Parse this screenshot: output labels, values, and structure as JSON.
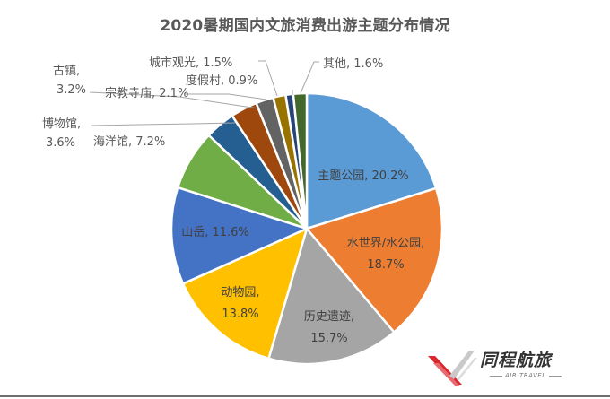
{
  "title": "2020暑期国内文旅消费出游主题分布情况",
  "chart_data": {
    "type": "pie",
    "title": "2020暑期国内文旅消费出游主题分布情况",
    "start_angle_deg": 0,
    "direction": "clockwise",
    "categories": [
      "主题公园",
      "水世界/水公园",
      "历史遗迹",
      "动物园",
      "山岳",
      "海洋馆",
      "博物馆",
      "古镇",
      "宗教寺庙",
      "城市观光",
      "度假村",
      "其他"
    ],
    "values": [
      20.2,
      18.7,
      15.7,
      13.8,
      11.6,
      7.2,
      3.6,
      3.2,
      2.1,
      1.5,
      0.9,
      1.6
    ],
    "unit": "%",
    "colors": [
      "#5B9BD5",
      "#ED7D31",
      "#A5A5A5",
      "#FFC000",
      "#4472C4",
      "#70AD47",
      "#255E91",
      "#9E480E",
      "#636363",
      "#997300",
      "#264478",
      "#43682B"
    ],
    "labels": [
      {
        "line1": "主题公园, 20.2%",
        "line2": ""
      },
      {
        "line1": "水世界/水公园,",
        "line2": "18.7%"
      },
      {
        "line1": "历史遗迹,",
        "line2": "15.7%"
      },
      {
        "line1": "动物园,",
        "line2": "13.8%"
      },
      {
        "line1": "山岳, 11.6%",
        "line2": ""
      },
      {
        "line1": "海洋馆, 7.2%",
        "line2": ""
      },
      {
        "line1": "博物馆,",
        "line2": "3.6%"
      },
      {
        "line1": "古镇,",
        "line2": "3.2%"
      },
      {
        "line1": "宗教寺庙, 2.1%",
        "line2": ""
      },
      {
        "line1": "城市观光, 1.5%",
        "line2": ""
      },
      {
        "line1": "度假村, 0.9%",
        "line2": ""
      },
      {
        "line1": "其他, 1.6%",
        "line2": ""
      }
    ],
    "legend": "none (data labels with leader lines)"
  },
  "brand": {
    "name_cn": "同程航旅",
    "name_en": "AIR TRAVEL",
    "colors": {
      "red": "#D7282F",
      "gray": "#B5B5B5"
    }
  }
}
